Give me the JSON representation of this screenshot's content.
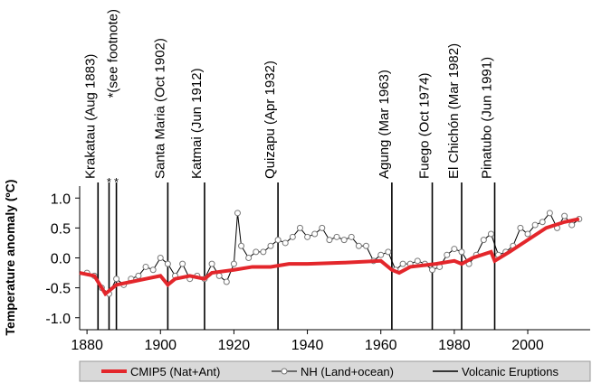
{
  "chart_data": {
    "type": "line",
    "y_label": "Temperature anomaly (ºC)",
    "xlim": [
      1878,
      2017
    ],
    "xticks": [
      1880,
      1900,
      1920,
      1940,
      1960,
      1980,
      2000
    ],
    "ylim": [
      -1.2,
      1.2
    ],
    "yticks": [
      {
        "value": 1,
        "label": "1.0"
      },
      0.5,
      {
        "value": 0,
        "label": "0.0"
      },
      -0.5,
      {
        "value": -1,
        "label": "-1.0"
      }
    ],
    "series": [
      {
        "name": "CMIP5 (Nat+Ant)",
        "color": "#e3262b",
        "marker": false,
        "x": [
          1878,
          1882,
          1885,
          1888,
          1892,
          1896,
          1900,
          1902,
          1904,
          1908,
          1912,
          1914,
          1920,
          1925,
          1930,
          1935,
          1940,
          1950,
          1960,
          1963,
          1965,
          1968,
          1975,
          1980,
          1982,
          1985,
          1990,
          1991,
          1995,
          2000,
          2005,
          2010,
          2014
        ],
        "values": [
          -0.25,
          -0.3,
          -0.6,
          -0.45,
          -0.4,
          -0.35,
          -0.3,
          -0.45,
          -0.35,
          -0.3,
          -0.35,
          -0.25,
          -0.2,
          -0.15,
          -0.15,
          -0.1,
          -0.1,
          -0.08,
          -0.05,
          -0.2,
          -0.25,
          -0.15,
          -0.1,
          -0.05,
          -0.1,
          0.0,
          0.1,
          -0.05,
          0.1,
          0.3,
          0.5,
          0.6,
          0.65
        ]
      },
      {
        "name": "NH (Land+ocean)",
        "color": "#000000",
        "marker": true,
        "x": [
          1880,
          1882,
          1884,
          1886,
          1888,
          1890,
          1892,
          1894,
          1896,
          1898,
          1900,
          1902,
          1904,
          1906,
          1908,
          1910,
          1912,
          1914,
          1916,
          1918,
          1920,
          1921,
          1922,
          1924,
          1926,
          1928,
          1930,
          1932,
          1934,
          1936,
          1938,
          1940,
          1942,
          1944,
          1946,
          1948,
          1950,
          1952,
          1954,
          1956,
          1958,
          1960,
          1962,
          1964,
          1966,
          1968,
          1970,
          1972,
          1974,
          1976,
          1978,
          1980,
          1982,
          1984,
          1986,
          1988,
          1990,
          1992,
          1994,
          1996,
          1998,
          2000,
          2002,
          2004,
          2006,
          2008,
          2010,
          2012,
          2014
        ],
        "values": [
          -0.25,
          -0.3,
          -0.5,
          -0.6,
          -0.35,
          -0.45,
          -0.35,
          -0.3,
          -0.15,
          -0.2,
          0.0,
          -0.1,
          -0.3,
          -0.1,
          -0.35,
          -0.3,
          -0.35,
          -0.1,
          -0.3,
          -0.4,
          -0.1,
          0.75,
          0.2,
          0.0,
          0.1,
          0.1,
          0.2,
          0.3,
          0.25,
          0.35,
          0.5,
          0.35,
          0.4,
          0.5,
          0.3,
          0.35,
          0.3,
          0.35,
          0.2,
          0.2,
          -0.05,
          0.05,
          0.1,
          -0.2,
          -0.1,
          -0.1,
          -0.05,
          -0.1,
          -0.2,
          -0.15,
          0.05,
          0.15,
          0.1,
          -0.1,
          0.05,
          0.3,
          0.4,
          0.05,
          0.1,
          0.2,
          0.5,
          0.4,
          0.55,
          0.6,
          0.75,
          0.5,
          0.7,
          0.55,
          0.65
        ]
      }
    ],
    "eruption_legend": "Volcanic Eruptions",
    "eruption_color": "#000000",
    "footnote_label": "*(see footnote)",
    "eruptions": [
      {
        "label": "Krakatau (Aug 1883)",
        "year": 1883
      },
      {
        "label": "*",
        "year": 1886
      },
      {
        "label": "*",
        "year": 1888
      },
      {
        "label": "Santa Maria (Oct 1902)",
        "year": 1902
      },
      {
        "label": "Katmai (Jun 1912)",
        "year": 1912
      },
      {
        "label": "Quizapu (Apr 1932)",
        "year": 1932
      },
      {
        "label": "Agung (Mar 1963)",
        "year": 1963
      },
      {
        "label": "Fuego (Oct 1974)",
        "year": 1974
      },
      {
        "label": "El Chichón (Mar 1982)",
        "year": 1982
      },
      {
        "label": "Pinatubo (Jun 1991)",
        "year": 1991
      }
    ]
  }
}
